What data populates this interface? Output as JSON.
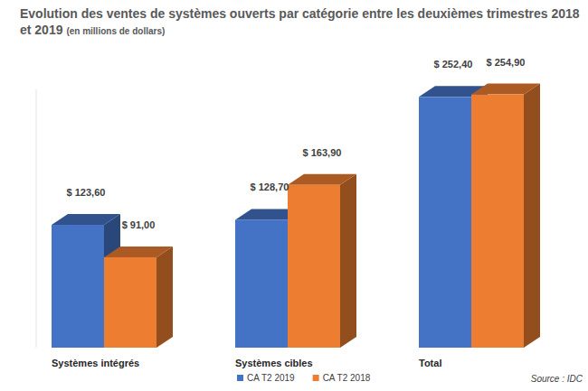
{
  "chart_data": {
    "type": "bar",
    "title": "Evolution des ventes de systèmes ouverts par catégorie entre les deuxièmes trimestres 2018 et 2019",
    "subtitle": "(en millions de dollars)",
    "categories": [
      "Systèmes intégrés",
      "Systèmes cibles",
      "Total"
    ],
    "series": [
      {
        "name": "CA T2 2019",
        "color": "#4472c4",
        "values": [
          123.6,
          128.7,
          252.4
        ],
        "value_labels": [
          "$ 123,60",
          "$ 128,70",
          "$ 252,40"
        ]
      },
      {
        "name": "CA T2 2018",
        "color": "#ed7d31",
        "values": [
          91.0,
          163.9,
          254.9
        ],
        "value_labels": [
          "$ 91,00",
          "$ 163,90",
          "$ 254,90"
        ]
      }
    ],
    "ylim": [
      0,
      260
    ],
    "tick_labels": false,
    "data_labels": true,
    "legend": "bottom",
    "annotations": [
      "Source : IDC"
    ]
  }
}
